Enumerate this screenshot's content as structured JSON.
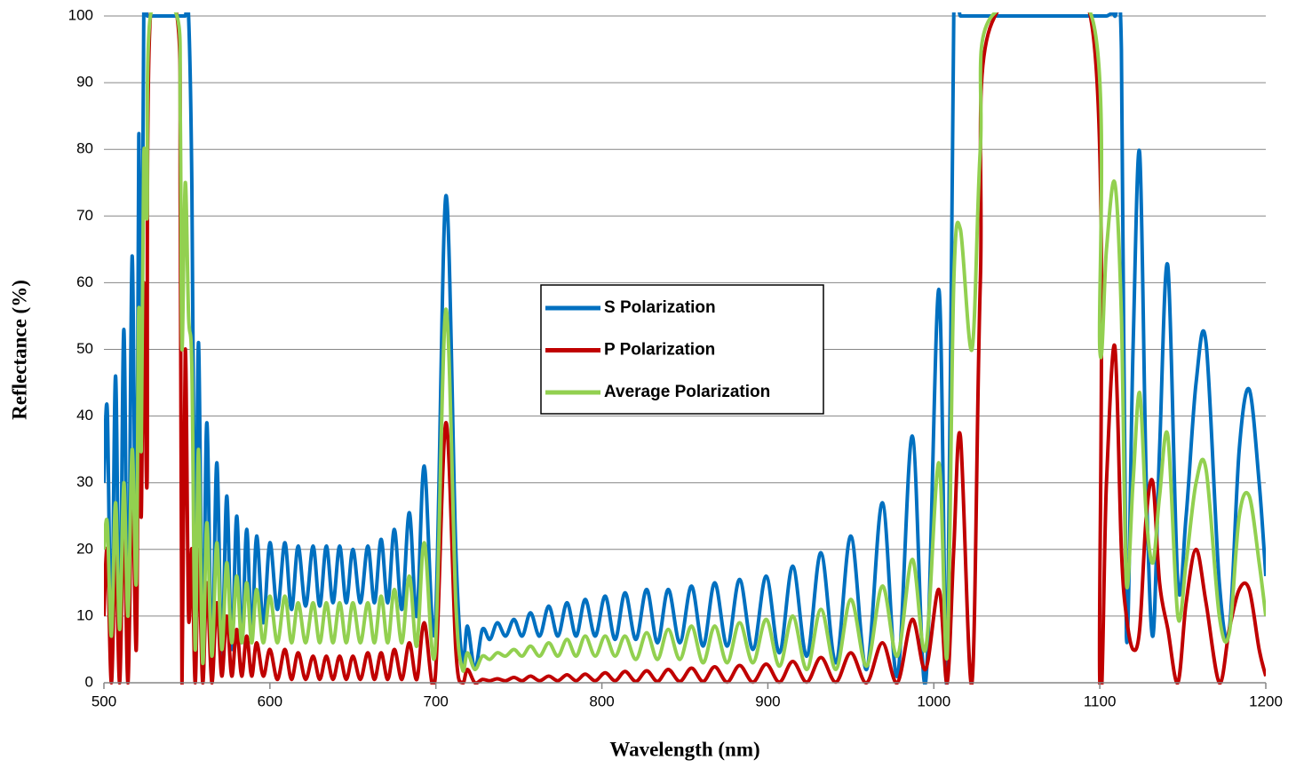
{
  "chart_data": {
    "type": "line",
    "xlabel": "Wavelength (nm)",
    "ylabel": "Reflectance (%)",
    "xlim": [
      500,
      1200
    ],
    "xticks": [
      500,
      600,
      700,
      800,
      900,
      1000,
      1100,
      1200
    ],
    "ylim": [
      0,
      100
    ],
    "yticks": [
      0,
      10,
      20,
      30,
      40,
      50,
      60,
      70,
      80,
      90,
      100
    ],
    "grid": true,
    "legend": "center",
    "x": [
      500,
      502,
      504.5,
      507,
      509.5,
      512,
      514.5,
      517,
      519.5,
      521,
      522.5,
      524,
      526,
      528,
      544,
      546,
      547,
      549,
      551,
      553,
      555,
      557,
      559.5,
      562,
      565,
      568,
      571,
      574,
      577,
      580,
      583,
      586,
      589,
      592,
      596,
      600,
      604.5,
      609,
      613,
      617,
      621.5,
      626,
      630,
      634,
      638,
      642,
      646,
      650,
      654.5,
      659,
      663,
      667,
      671,
      675,
      679.5,
      684,
      688.5,
      693,
      699.5,
      706,
      712,
      716,
      719,
      723.5,
      728,
      732.5,
      737,
      742,
      747,
      752,
      757,
      762.5,
      768,
      773.5,
      779,
      784.5,
      790,
      796,
      802,
      808,
      814,
      820.5,
      827,
      833.5,
      840,
      847,
      854,
      861,
      868,
      875.5,
      883,
      891,
      899,
      907,
      915,
      923.5,
      932,
      941,
      950,
      959.5,
      969,
      978,
      987,
      995,
      1003,
      1008,
      1012,
      1016,
      1023,
      1028,
      1035,
      1095,
      1100,
      1104,
      1109,
      1113,
      1116,
      1120,
      1124,
      1128,
      1132,
      1136,
      1141,
      1147,
      1152,
      1158,
      1164,
      1172,
      1178,
      1184,
      1190,
      1196,
      1200
    ],
    "series": [
      {
        "name": "S Polarization",
        "color": "#0070c0",
        "values": [
          30,
          41,
          5,
          46,
          5,
          53,
          5,
          64,
          10,
          82,
          40,
          100,
          100,
          100,
          100,
          100,
          100,
          100,
          100,
          74,
          10,
          51,
          3,
          39,
          3,
          33,
          4,
          28,
          5,
          25,
          6,
          23,
          7,
          22,
          9,
          21,
          11,
          21,
          11,
          20.5,
          11.5,
          20.5,
          11.5,
          20.5,
          12,
          20.5,
          12,
          20,
          12,
          20.5,
          12,
          21.5,
          12,
          23,
          11,
          25.5,
          10,
          32.5,
          8,
          73,
          20,
          3,
          8.5,
          2,
          8,
          6.5,
          9,
          7,
          9.5,
          7,
          10.5,
          7,
          11.5,
          7,
          12,
          7,
          12.5,
          7,
          13,
          6.5,
          13.5,
          6.5,
          14,
          6,
          14,
          6,
          14.5,
          5.5,
          15,
          5.5,
          15.5,
          5,
          16,
          4.5,
          17.5,
          4,
          19.5,
          3,
          22,
          2,
          27,
          1,
          37,
          0,
          59,
          0,
          100,
          100,
          100,
          100,
          100,
          100,
          100,
          100,
          100,
          95,
          7,
          50,
          79.5,
          30,
          7,
          35,
          62.5,
          15,
          25,
          45,
          51,
          15,
          8,
          35,
          44,
          30,
          16
        ]
      },
      {
        "name": "P Polarization",
        "color": "#c00000",
        "values": [
          10,
          20,
          0,
          20,
          0,
          25,
          0,
          30,
          5,
          45,
          25,
          60,
          30,
          100,
          100,
          70,
          0,
          50,
          10,
          20,
          0,
          20,
          0,
          15,
          0,
          12,
          1,
          10,
          1,
          8,
          1,
          7,
          1,
          6,
          1,
          5,
          0.5,
          5,
          0.5,
          4.5,
          0.5,
          4,
          0.5,
          4,
          0.5,
          4,
          0.5,
          4,
          0.5,
          4.5,
          0.5,
          4.5,
          0.5,
          5,
          0.5,
          6,
          0.5,
          9,
          0.5,
          39,
          5,
          0,
          2,
          0,
          0.5,
          0.3,
          0.6,
          0.3,
          0.8,
          0.3,
          1,
          0.3,
          1,
          0.3,
          1.2,
          0.3,
          1.3,
          0.3,
          1.5,
          0.3,
          1.7,
          0.2,
          1.8,
          0.2,
          2,
          0.2,
          2.2,
          0.2,
          2.4,
          0.1,
          2.6,
          0.1,
          2.8,
          0.1,
          3.2,
          0.1,
          3.8,
          0.1,
          4.5,
          0,
          6,
          0,
          9.5,
          2,
          14,
          0,
          20,
          37,
          0,
          60,
          99,
          99,
          0,
          30,
          50.5,
          20,
          10,
          5,
          8,
          25,
          30,
          15,
          8,
          0,
          12,
          20,
          12,
          0,
          8,
          14,
          14,
          5,
          1
        ]
      },
      {
        "name": "Average Polarization",
        "color": "#92d050",
        "values": [
          20,
          24,
          7,
          27,
          8,
          30,
          10,
          35,
          15,
          56,
          35,
          79,
          70,
          100,
          100,
          85,
          50,
          75,
          55,
          47,
          5,
          35,
          3,
          24,
          4,
          21,
          5,
          18,
          6,
          16,
          6,
          15,
          6,
          14,
          6,
          13,
          6,
          13,
          6,
          12,
          6,
          12,
          6,
          12,
          6,
          12,
          6,
          12,
          6,
          12,
          6,
          13,
          6,
          14,
          6,
          16,
          5.5,
          21,
          4.5,
          56,
          12,
          2,
          4.5,
          2,
          4,
          3.5,
          4.5,
          4,
          5,
          4,
          5.5,
          4,
          6,
          4,
          6.5,
          4,
          7,
          4,
          7,
          4,
          7,
          3.5,
          7.5,
          3.5,
          8,
          3.5,
          8.5,
          3,
          8.5,
          3,
          9,
          3,
          9.5,
          2.5,
          10,
          2,
          11,
          2,
          12.5,
          2.5,
          14.5,
          4,
          18.5,
          5,
          33,
          4,
          60,
          68,
          50,
          80,
          100,
          100,
          50,
          65,
          75,
          55,
          15,
          30,
          43.5,
          25,
          18,
          28,
          37,
          10,
          18,
          30,
          32,
          10,
          7.5,
          25,
          28,
          18,
          10
        ]
      }
    ]
  }
}
